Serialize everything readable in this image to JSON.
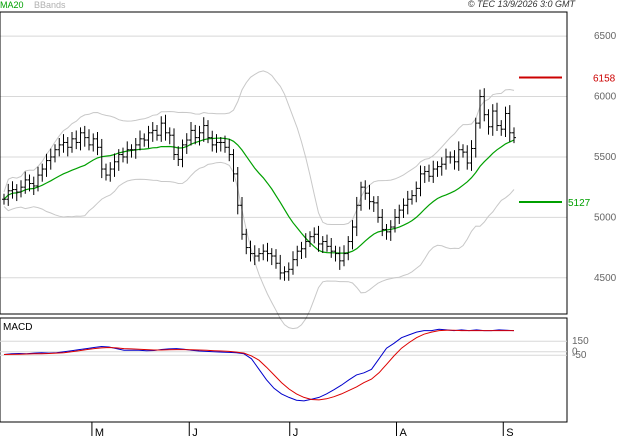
{
  "header": {
    "legend_ma": "MA20",
    "legend_bb": "BBands",
    "copyright": "© TEC 13/9/2026 3:0 GMT"
  },
  "colors": {
    "ma": "#00a000",
    "bb": "#c8c8c8",
    "price": "#000000",
    "resistance": "#cc0000",
    "support": "#00a000",
    "macd": "#0000cc",
    "signal": "#dd0000",
    "grid": "#d8d8d8"
  },
  "chart_data": [
    {
      "type": "ohlc",
      "ylim": [
        4200,
        6700
      ],
      "y_ticks": [
        4500,
        5000,
        5500,
        6000,
        6500
      ],
      "y_tick_labels": [
        "4500",
        "5000",
        "5500",
        "6000",
        "6500"
      ],
      "x_tick_labels": [
        "M",
        "J",
        "J",
        "A",
        "S"
      ],
      "x_tick_positions": [
        28,
        59,
        91,
        125,
        159
      ],
      "series_close": [
        5150,
        5220,
        5230,
        5210,
        5250,
        5310,
        5280,
        5260,
        5350,
        5400,
        5470,
        5500,
        5560,
        5600,
        5620,
        5580,
        5650,
        5620,
        5700,
        5660,
        5600,
        5650,
        5580,
        5400,
        5350,
        5400,
        5460,
        5520,
        5500,
        5560,
        5560,
        5600,
        5650,
        5640,
        5700,
        5720,
        5680,
        5780,
        5700,
        5680,
        5520,
        5480,
        5600,
        5640,
        5720,
        5660,
        5700,
        5760,
        5660,
        5600,
        5620,
        5620,
        5580,
        5520,
        5360,
        5100,
        4860,
        4750,
        4700,
        4680,
        4700,
        4720,
        4700,
        4680,
        4620,
        4540,
        4550,
        4570,
        4650,
        4720,
        4740,
        4800,
        4840,
        4860,
        4780,
        4800,
        4760,
        4720,
        4700,
        4640,
        4700,
        4800,
        4920,
        5100,
        5250,
        5200,
        5130,
        5120,
        5000,
        4900,
        4880,
        4920,
        5000,
        5060,
        5100,
        5150,
        5180,
        5240,
        5360,
        5380,
        5340,
        5400,
        5420,
        5440,
        5500,
        5500,
        5460,
        5560,
        5540,
        5450,
        5570,
        5780,
        6000,
        5850,
        5750,
        5880,
        5760,
        5730,
        5860,
        5700,
        5660
      ],
      "series_macd": [
        -40,
        -30,
        -25,
        -30,
        -20,
        -15,
        -20,
        -15,
        0,
        15,
        30,
        45,
        60,
        75,
        68,
        45,
        20,
        20,
        20,
        15,
        18,
        32,
        40,
        45,
        35,
        20,
        10,
        5,
        0,
        -5,
        -10,
        -15,
        -30,
        -100,
        -250,
        -400,
        -520,
        -600,
        -650,
        -690,
        -700,
        -675,
        -650,
        -600,
        -540,
        -475,
        -400,
        -330,
        -300,
        -250,
        -100,
        50,
        120,
        200,
        240,
        280,
        300,
        300,
        320,
        310,
        300,
        310,
        300,
        310,
        300,
        300,
        310,
        305,
        300
      ],
      "series_signal": [
        -40,
        -38,
        -35,
        -33,
        -30,
        -28,
        -25,
        -20,
        -15,
        0,
        15,
        30,
        45,
        55,
        60,
        55,
        45,
        40,
        35,
        30,
        25,
        25,
        28,
        30,
        30,
        28,
        25,
        20,
        15,
        10,
        5,
        -5,
        -20,
        -60,
        -120,
        -220,
        -330,
        -440,
        -530,
        -600,
        -650,
        -680,
        -685,
        -670,
        -640,
        -600,
        -550,
        -500,
        -440,
        -390,
        -300,
        -180,
        -60,
        50,
        130,
        200,
        250,
        280,
        300,
        305,
        305,
        300,
        300,
        300,
        300,
        300,
        300,
        300,
        300
      ],
      "macd_ylim": [
        -1000,
        480
      ],
      "macd_ticks": [
        150,
        0,
        -50
      ],
      "macd_tick_labels": [
        "150",
        "0",
        "-50"
      ],
      "annotations": [
        {
          "label": "6158",
          "value": 6158,
          "type": "resistance"
        },
        {
          "label": "5127",
          "value": 5127,
          "type": "support"
        }
      ],
      "panels": [
        "price",
        "MACD"
      ],
      "macd_label": "MACD"
    }
  ]
}
